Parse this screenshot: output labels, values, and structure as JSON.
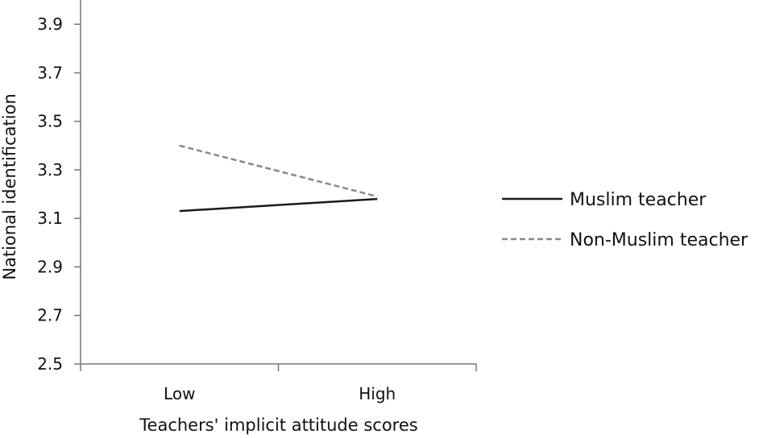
{
  "chart_data": {
    "type": "line",
    "categories": [
      "Low",
      "High"
    ],
    "xlabel": "Teachers' implicit attitude scores",
    "ylabel": "National identification",
    "ylim": [
      2.5,
      4.0
    ],
    "yticks": [
      "2.5",
      "2.7",
      "2.9",
      "3.1",
      "3.3",
      "3.5",
      "3.7",
      "3.9"
    ],
    "grid": false,
    "legend": "right",
    "series": [
      {
        "name": "Muslim teacher",
        "values": [
          3.13,
          3.18
        ],
        "style": "solid",
        "color": "#1a1a1a"
      },
      {
        "name": "Non-Muslim teacher",
        "values": [
          3.4,
          3.19
        ],
        "style": "dashed",
        "color": "#888888"
      }
    ]
  }
}
